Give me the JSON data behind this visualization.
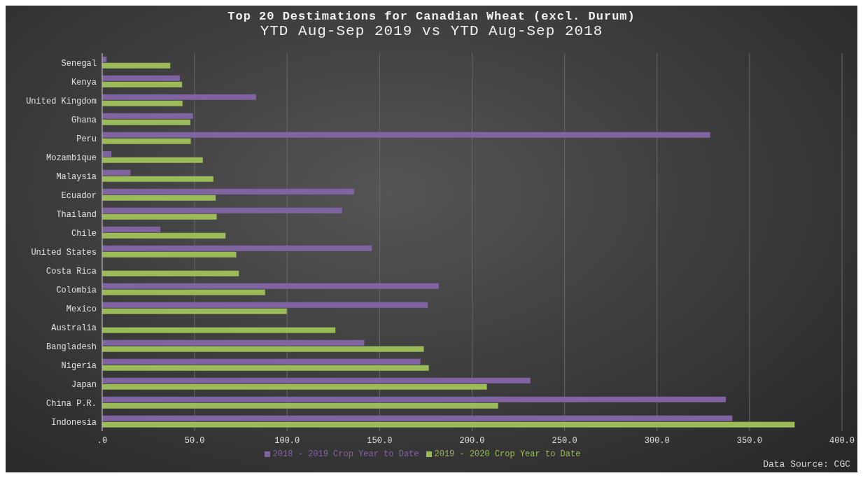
{
  "chart_data": {
    "type": "bar",
    "orientation": "horizontal",
    "title": "Top 20 Destimations for Canadian Wheat (excl. Durum)",
    "subtitle": "YTD Aug-Sep 2019 vs YTD Aug-Sep 2018",
    "categories": [
      "Senegal",
      "Kenya",
      "United Kingdom",
      "Ghana",
      "Peru",
      "Mozambique",
      "Malaysia",
      "Ecuador",
      "Thailand",
      "Chile",
      "United States",
      "Costa Rica",
      "Colombia",
      "Mexico",
      "Australia",
      "Bangladesh",
      "Nigeria",
      "Japan",
      "China P.R.",
      "Indonesia"
    ],
    "series": [
      {
        "name": "2018 - 2019 Crop Year to Date",
        "color": "#8064a2",
        "values": [
          2.4,
          42.0,
          83.2,
          49.1,
          328.7,
          5.0,
          15.3,
          136.2,
          129.7,
          31.5,
          145.8,
          null,
          182.0,
          176.1,
          null,
          141.7,
          172.1,
          231.5,
          337.2,
          340.7
        ]
      },
      {
        "name": "2019 - 2020 Crop Year to Date",
        "color": "#9bbb59",
        "values": [
          36.8,
          43.2,
          43.4,
          47.7,
          47.9,
          54.4,
          60.1,
          61.4,
          61.9,
          66.7,
          72.5,
          73.9,
          88.1,
          99.8,
          126.1,
          173.9,
          176.6,
          208.0,
          214.1,
          374.4
        ]
      }
    ],
    "xlim": [
      0,
      400
    ],
    "xticks": [
      {
        "value": 0,
        "label": ".0"
      },
      {
        "value": 50,
        "label": "50.0"
      },
      {
        "value": 100,
        "label": "100.0"
      },
      {
        "value": 150,
        "label": "150.0"
      },
      {
        "value": 200,
        "label": "200.0"
      },
      {
        "value": 250,
        "label": "250.0"
      },
      {
        "value": 300,
        "label": "300.0"
      },
      {
        "value": 350,
        "label": "350.0"
      },
      {
        "value": 400,
        "label": "400.0"
      }
    ],
    "grid": "x",
    "legend": "bottom",
    "annotations": [
      "Data Source: CGC"
    ]
  }
}
